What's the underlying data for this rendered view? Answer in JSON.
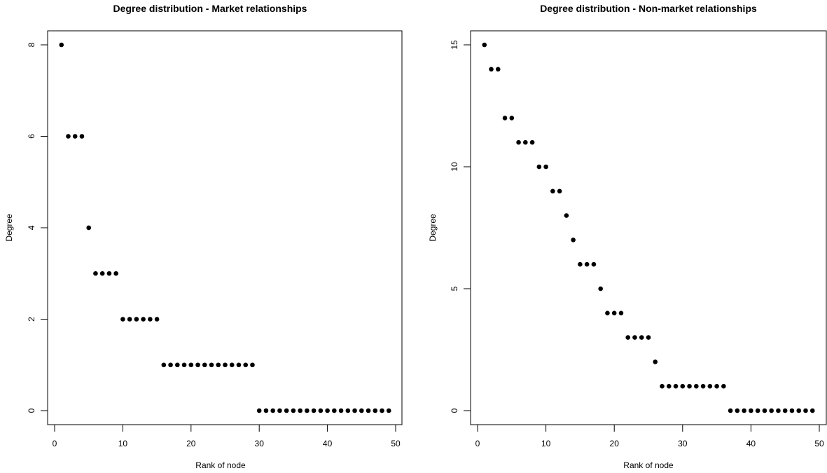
{
  "chart_data": [
    {
      "type": "scatter",
      "title": "Degree distribution - Market relationships",
      "xlabel": "Rank of node",
      "ylabel": "Degree",
      "xlim": [
        0,
        50
      ],
      "ylim": [
        0,
        8
      ],
      "x_ticks": [
        0,
        10,
        20,
        30,
        40,
        50
      ],
      "y_ticks": [
        0,
        2,
        4,
        6,
        8
      ],
      "grid": false,
      "series": [
        {
          "x": [
            1,
            2,
            3,
            4,
            5,
            6,
            7,
            8,
            9,
            10,
            11,
            12,
            13,
            14,
            15,
            16,
            17,
            18,
            19,
            20,
            21,
            22,
            23,
            24,
            25,
            26,
            27,
            28,
            29,
            30,
            31,
            32,
            33,
            34,
            35,
            36,
            37,
            38,
            39,
            40,
            41,
            42,
            43,
            44,
            45,
            46,
            47,
            48,
            49
          ],
          "values": [
            8,
            6,
            6,
            6,
            4,
            3,
            3,
            3,
            3,
            2,
            2,
            2,
            2,
            2,
            2,
            1,
            1,
            1,
            1,
            1,
            1,
            1,
            1,
            1,
            1,
            1,
            1,
            1,
            1,
            0,
            0,
            0,
            0,
            0,
            0,
            0,
            0,
            0,
            0,
            0,
            0,
            0,
            0,
            0,
            0,
            0,
            0,
            0,
            0
          ]
        }
      ]
    },
    {
      "type": "scatter",
      "title": "Degree distribution - Non-market relationships",
      "xlabel": "Rank of node",
      "ylabel": "Degree",
      "xlim": [
        0,
        50
      ],
      "ylim": [
        0,
        15
      ],
      "x_ticks": [
        0,
        10,
        20,
        30,
        40,
        50
      ],
      "y_ticks": [
        0,
        5,
        10,
        15
      ],
      "grid": false,
      "series": [
        {
          "x": [
            1,
            2,
            3,
            4,
            5,
            6,
            7,
            8,
            9,
            10,
            11,
            12,
            13,
            14,
            15,
            16,
            17,
            18,
            19,
            20,
            21,
            22,
            23,
            24,
            25,
            26,
            27,
            28,
            29,
            30,
            31,
            32,
            33,
            34,
            35,
            36,
            37,
            38,
            39,
            40,
            41,
            42,
            43,
            44,
            45,
            46,
            47,
            48,
            49
          ],
          "values": [
            15,
            14,
            14,
            12,
            12,
            11,
            11,
            11,
            10,
            10,
            9,
            9,
            8,
            7,
            6,
            6,
            6,
            5,
            4,
            4,
            4,
            3,
            3,
            3,
            3,
            2,
            1,
            1,
            1,
            1,
            1,
            1,
            1,
            1,
            1,
            1,
            0,
            0,
            0,
            0,
            0,
            0,
            0,
            0,
            0,
            0,
            0,
            0,
            0
          ]
        }
      ]
    }
  ],
  "colors": {
    "point": "#000000",
    "axis": "#000000",
    "background": "#ffffff"
  }
}
